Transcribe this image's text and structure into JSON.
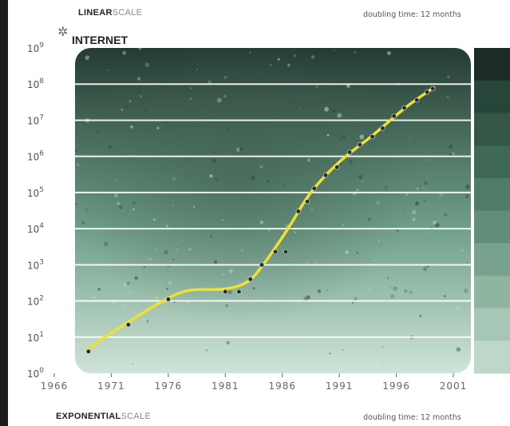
{
  "header": {
    "top_bold": "LINEAR",
    "top_light": "SCALE",
    "top_doubling": "doubling time: 12 months",
    "bottom_bold": "EXPONENTIAL",
    "bottom_light": "SCALE",
    "bottom_doubling": "doubling time: 12 months"
  },
  "colors": {
    "curve": "#f0e030",
    "gridline": "#ffffff",
    "point": "#2b2b2b",
    "bg_dark": "#243b32",
    "bg_light": "#cfe4d8"
  },
  "chart_data": {
    "type": "scatter",
    "title": "INTERNET",
    "title_icon": "sparkle-icon",
    "xlabel": "",
    "ylabel": "",
    "x_ticks": [
      1966,
      1971,
      1976,
      1981,
      1986,
      1991,
      1996,
      2001
    ],
    "y_ticks": [
      "10",
      "10",
      "10",
      "10",
      "10",
      "10",
      "10",
      "10",
      "10",
      "10"
    ],
    "y_exponents": [
      "0",
      "1",
      "2",
      "3",
      "4",
      "5",
      "6",
      "7",
      "8",
      "9"
    ],
    "xlim": [
      1966,
      2001
    ],
    "ylim_log10": [
      0,
      9
    ],
    "y_scale": "log",
    "grid": true,
    "legend_swatches": [
      "#1c2b25",
      "#27463a",
      "#335647",
      "#3f6856",
      "#507b67",
      "#628e79",
      "#78a28d",
      "#8fb5a1",
      "#a6c7b5",
      "#bdd8c8"
    ],
    "points": [
      {
        "x": 1969,
        "y": 4
      },
      {
        "x": 1972.5,
        "y": 22
      },
      {
        "x": 1976,
        "y": 111
      },
      {
        "x": 1981,
        "y": 180
      },
      {
        "x": 1982.2,
        "y": 180
      },
      {
        "x": 1983.2,
        "y": 400
      },
      {
        "x": 1984.2,
        "y": 1000
      },
      {
        "x": 1985.4,
        "y": 2300
      },
      {
        "x": 1986.3,
        "y": 2300
      },
      {
        "x": 1987.4,
        "y": 30000
      },
      {
        "x": 1988.2,
        "y": 56000
      },
      {
        "x": 1988.8,
        "y": 130000
      },
      {
        "x": 1989.8,
        "y": 300000
      },
      {
        "x": 1990.8,
        "y": 500000
      },
      {
        "x": 1991.9,
        "y": 1300000
      },
      {
        "x": 1992.8,
        "y": 2100000
      },
      {
        "x": 1993.9,
        "y": 3500000
      },
      {
        "x": 1994.8,
        "y": 6000000
      },
      {
        "x": 1995.8,
        "y": 13000000
      },
      {
        "x": 1996.7,
        "y": 22000000
      },
      {
        "x": 1997.8,
        "y": 36000000
      },
      {
        "x": 1998.7,
        "y": 60000000
      },
      {
        "x": 1999.2,
        "y": 75000000
      }
    ],
    "trend": [
      {
        "x": 1969,
        "y": 5
      },
      {
        "x": 1973,
        "y": 33
      },
      {
        "x": 1976,
        "y": 120
      },
      {
        "x": 1978,
        "y": 200
      },
      {
        "x": 1981,
        "y": 215
      },
      {
        "x": 1983,
        "y": 350
      },
      {
        "x": 1984.5,
        "y": 1200
      },
      {
        "x": 1986.5,
        "y": 10000
      },
      {
        "x": 1988.5,
        "y": 100000
      },
      {
        "x": 1991,
        "y": 700000
      },
      {
        "x": 1994,
        "y": 4000000
      },
      {
        "x": 1997,
        "y": 25000000
      },
      {
        "x": 1999.3,
        "y": 80000000
      }
    ]
  }
}
